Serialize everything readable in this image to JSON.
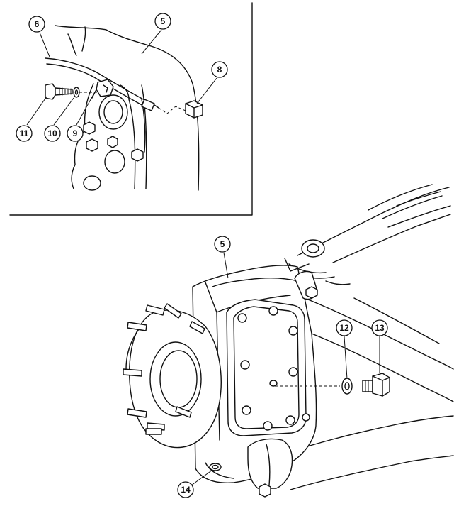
{
  "callouts": {
    "c5_top": "5",
    "c6": "6",
    "c8": "8",
    "c9": "9",
    "c10": "10",
    "c11": "11",
    "c5_main": "5",
    "c12": "12",
    "c13": "13",
    "c14": "14"
  },
  "detail_inset": {
    "parts": [
      "6",
      "5",
      "8",
      "9",
      "10",
      "11"
    ]
  },
  "main_view": {
    "parts": [
      "5",
      "12",
      "13",
      "14"
    ]
  }
}
